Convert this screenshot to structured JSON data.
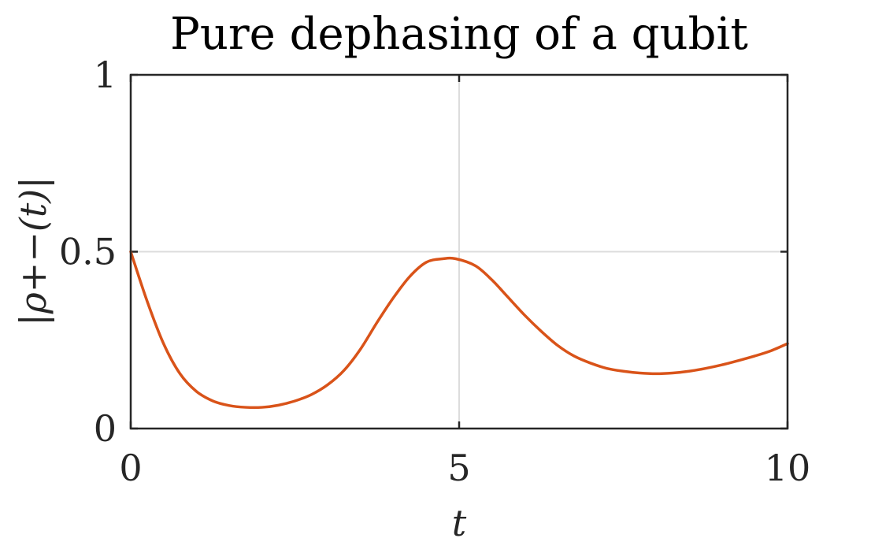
{
  "chart_data": {
    "type": "line",
    "title": "Pure dephasing of a qubit",
    "xlabel": "t",
    "ylabel": "|ρ+−(t)|",
    "xlim": [
      0,
      10
    ],
    "ylim": [
      0,
      1
    ],
    "xticks": [
      0,
      5,
      10
    ],
    "xtick_labels": [
      "0",
      "5",
      "10"
    ],
    "yticks": [
      0,
      0.5,
      1
    ],
    "ytick_labels": [
      "0",
      "0.5",
      "1"
    ],
    "grid": true,
    "series": [
      {
        "color": "#D95319",
        "x": [
          0,
          0.25,
          0.5,
          0.75,
          1.0,
          1.25,
          1.5,
          1.75,
          2.0,
          2.25,
          2.5,
          2.75,
          3.0,
          3.25,
          3.5,
          3.75,
          4.0,
          4.25,
          4.5,
          4.75,
          4.95,
          5.25,
          5.5,
          5.75,
          6.0,
          6.25,
          6.5,
          6.75,
          7.0,
          7.25,
          7.5,
          7.75,
          8.0,
          8.25,
          8.5,
          8.75,
          9.0,
          9.25,
          9.5,
          9.75,
          10.0
        ],
        "y": [
          0.5,
          0.36,
          0.24,
          0.155,
          0.105,
          0.078,
          0.065,
          0.06,
          0.06,
          0.066,
          0.078,
          0.096,
          0.124,
          0.165,
          0.225,
          0.3,
          0.37,
          0.43,
          0.47,
          0.48,
          0.48,
          0.46,
          0.42,
          0.37,
          0.32,
          0.275,
          0.235,
          0.205,
          0.185,
          0.17,
          0.162,
          0.157,
          0.155,
          0.157,
          0.162,
          0.17,
          0.18,
          0.192,
          0.205,
          0.22,
          0.24
        ]
      }
    ]
  }
}
